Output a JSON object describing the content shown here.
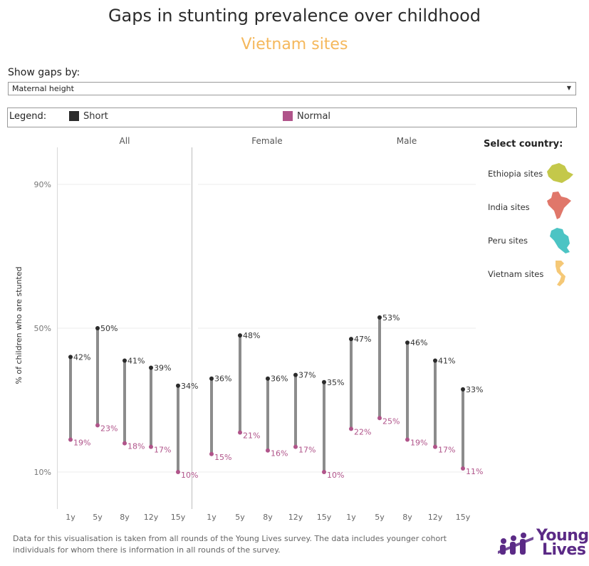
{
  "title": "Gaps in stunting prevalence over childhood",
  "subtitle": "Vietnam sites",
  "filter": {
    "label": "Show gaps by:",
    "value": "Maternal height"
  },
  "legend": {
    "title": "Legend:",
    "items": [
      {
        "label": "Short",
        "color": "#2b2b2b"
      },
      {
        "label": "Normal",
        "color": "#b0548a"
      }
    ]
  },
  "country_selector": {
    "title": "Select country:",
    "items": [
      {
        "label": "Ethiopia sites",
        "color": "#c4c84a",
        "icon": "ethiopia-map-icon"
      },
      {
        "label": "India sites",
        "color": "#e0776a",
        "icon": "india-map-icon"
      },
      {
        "label": "Peru sites",
        "color": "#4cc4c4",
        "icon": "peru-map-icon"
      },
      {
        "label": "Vietnam sites",
        "color": "#f5c876",
        "icon": "vietnam-map-icon"
      }
    ]
  },
  "chart_data": {
    "type": "dumbbell",
    "ylabel": "% of children who are stunted",
    "yticks": [
      "90%",
      "50%",
      "10%"
    ],
    "ytick_values": [
      90,
      50,
      10
    ],
    "panels": [
      {
        "title": "All",
        "categories": [
          "1y",
          "5y",
          "8y",
          "12y",
          "15y"
        ],
        "short": [
          42,
          50,
          41,
          39,
          34
        ],
        "normal": [
          19,
          23,
          18,
          17,
          10
        ],
        "short_labels": [
          "42%",
          "50%",
          "41%",
          "39%",
          "34%"
        ],
        "normal_labels": [
          "19%",
          "23%",
          "18%",
          "17%",
          "10%"
        ]
      },
      {
        "title": "Female",
        "categories": [
          "1y",
          "5y",
          "8y",
          "12y",
          "15y"
        ],
        "short": [
          36,
          48,
          36,
          37,
          35
        ],
        "normal": [
          15,
          21,
          16,
          17,
          10
        ],
        "short_labels": [
          "36%",
          "48%",
          "36%",
          "37%",
          "35%"
        ],
        "normal_labels": [
          "15%",
          "21%",
          "16%",
          "17%",
          "10%"
        ]
      },
      {
        "title": "Male",
        "categories": [
          "1y",
          "5y",
          "8y",
          "12y",
          "15y"
        ],
        "short": [
          47,
          53,
          46,
          41,
          33
        ],
        "normal": [
          22,
          25,
          19,
          17,
          11
        ],
        "short_labels": [
          "47%",
          "53%",
          "46%",
          "41%",
          "33%"
        ],
        "normal_labels": [
          "22%",
          "25%",
          "19%",
          "17%",
          "11%"
        ]
      }
    ],
    "colors": {
      "short": "#2b2b2b",
      "normal": "#b0548a",
      "bar": "#8c8c8c",
      "grid": "#ececec"
    }
  },
  "footnote": "Data for this visualisation is taken from all rounds of the Young Lives survey. The data includes younger cohort individuals for whom there is information in all rounds of the survey.",
  "logo": {
    "line1": "Young",
    "line2": "Lives",
    "color": "#5b2a86"
  }
}
